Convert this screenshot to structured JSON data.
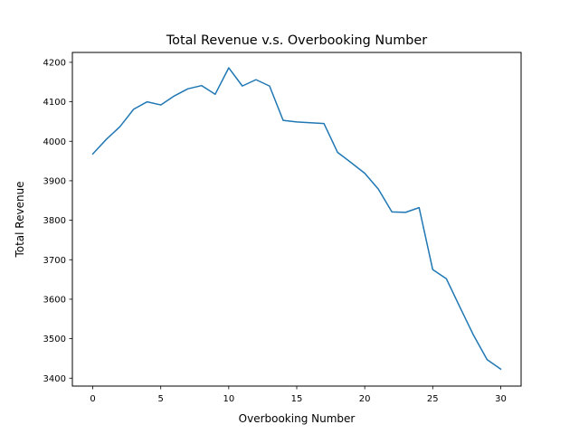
{
  "chart_data": {
    "type": "line",
    "title": "Total Revenue v.s. Overbooking Number",
    "xlabel": "Overbooking Number",
    "ylabel": "Total Revenue",
    "xlim": [
      -1.5,
      31.5
    ],
    "ylim": [
      3380,
      4225
    ],
    "xticks": [
      0,
      5,
      10,
      15,
      20,
      25,
      30
    ],
    "yticks": [
      3400,
      3500,
      3600,
      3700,
      3800,
      3900,
      4000,
      4100,
      4200
    ],
    "grid": false,
    "series": [
      {
        "color": "#1f77b4",
        "x": [
          0,
          1,
          2,
          3,
          4,
          5,
          6,
          7,
          8,
          9,
          10,
          11,
          12,
          13,
          14,
          15,
          16,
          17,
          18,
          19,
          20,
          21,
          22,
          23,
          24,
          25,
          26,
          27,
          28,
          29,
          30
        ],
        "values": [
          3968,
          4005,
          4037,
          4081,
          4100,
          4092,
          4115,
          4133,
          4141,
          4119,
          4186,
          4140,
          4156,
          4140,
          4053,
          4049,
          4047,
          4045,
          3972,
          3946,
          3919,
          3879,
          3821,
          3820,
          3832,
          3675,
          3652,
          3580,
          3509,
          3447,
          3423
        ]
      }
    ]
  }
}
